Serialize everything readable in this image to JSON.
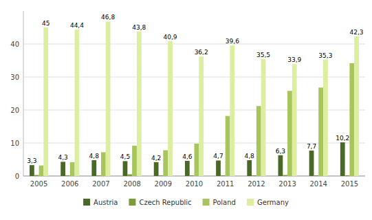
{
  "chart_data": {
    "type": "bar",
    "categories": [
      "2005",
      "2006",
      "2007",
      "2008",
      "2009",
      "2010",
      "2011",
      "2012",
      "2013",
      "2014",
      "2015"
    ],
    "series": [
      {
        "name": "Austria",
        "color": "#4a6929",
        "values": [
          3.3,
          4.3,
          4.8,
          4.5,
          4.2,
          4.6,
          4.7,
          4.8,
          6.3,
          7.7,
          10.2
        ],
        "data_labels": true,
        "value_labels": [
          "3,3",
          "4,3",
          "4,8",
          "4,5",
          "4,2",
          "4,6",
          "4,7",
          "4,8",
          "6,3",
          "7,7",
          "10,2"
        ]
      },
      {
        "name": "Czech Republic",
        "color": "#7a9c3a",
        "values": [
          0.3,
          0.2,
          0.2,
          0.5,
          0.2,
          0.2,
          0.2,
          0.2,
          0.3,
          0.2,
          0.2
        ]
      },
      {
        "name": "Poland",
        "color": "#a8c45c",
        "values": [
          3.2,
          4.2,
          7.2,
          9.2,
          7.8,
          9.8,
          18.2,
          21.2,
          25.8,
          26.8,
          34.2
        ]
      },
      {
        "name": "Germany",
        "color": "#ddeea0",
        "values": [
          45.0,
          44.4,
          46.8,
          43.8,
          40.9,
          36.2,
          39.6,
          35.5,
          33.9,
          35.3,
          42.3
        ],
        "data_labels": true,
        "value_labels": [
          "45",
          "44,4",
          "46,8",
          "43,8",
          "40,9",
          "36,2",
          "39,6",
          "35,5",
          "33,9",
          "35,3",
          "42,3"
        ]
      }
    ],
    "ylim": [
      0,
      50
    ],
    "yticks": [
      0,
      10,
      20,
      30,
      40
    ],
    "grid": true,
    "legend": "bottom"
  }
}
